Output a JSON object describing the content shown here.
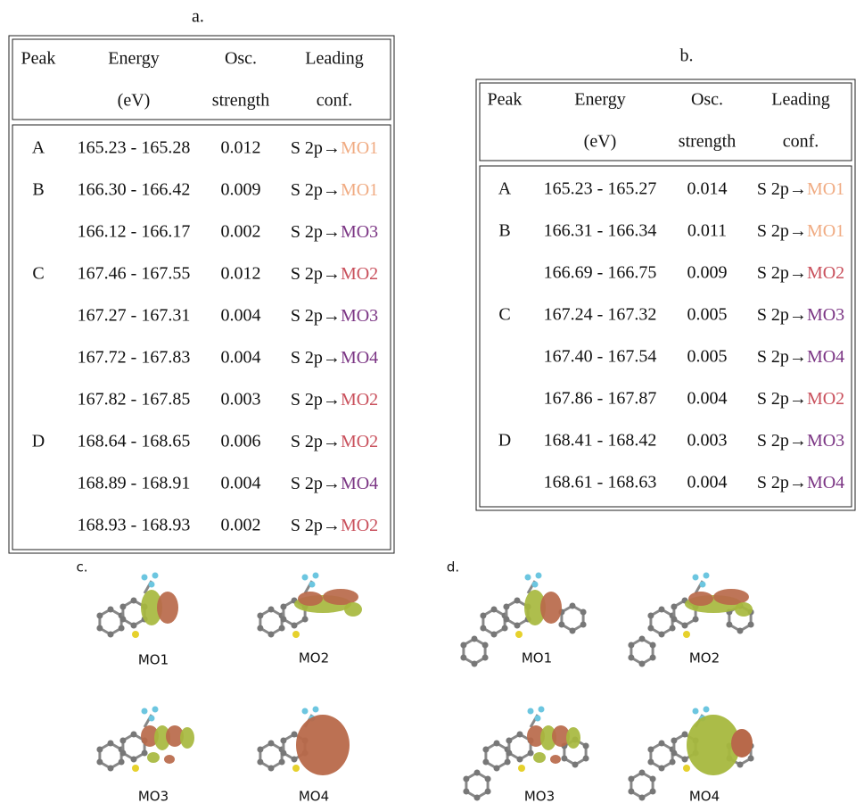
{
  "mo_colors": {
    "MO1": "#f0ab82",
    "MO2": "#c9505c",
    "MO3": "#7b3584",
    "MO4": "#7b3584"
  },
  "tables": [
    {
      "label": "a.",
      "headers": [
        {
          "line1": "Peak"
        },
        {
          "line1": "Energy",
          "line2": "(eV)"
        },
        {
          "line1": "Osc.",
          "line2": "strength"
        },
        {
          "line1": "Leading",
          "line2": "conf."
        }
      ],
      "rows": [
        {
          "peak": "A",
          "energy": "165.23 - 165.28",
          "osc": 0.012,
          "transition": "S 2p→",
          "mo": "MO1"
        },
        {
          "peak": "B",
          "energy": "166.30 - 166.42",
          "osc": 0.009,
          "transition": "S 2p→",
          "mo": "MO1"
        },
        {
          "energy": "166.12 - 166.17",
          "osc": 0.002,
          "transition": "S 2p→",
          "mo": "MO3"
        },
        {
          "peak": "C",
          "energy": "167.46 - 167.55",
          "osc": 0.012,
          "transition": "S 2p→",
          "mo": "MO2"
        },
        {
          "energy": "167.27 - 167.31",
          "osc": 0.004,
          "transition": "S 2p→",
          "mo": "MO3"
        },
        {
          "energy": "167.72 - 167.83",
          "osc": 0.004,
          "transition": "S 2p→",
          "mo": "MO4"
        },
        {
          "energy": "167.82 - 167.85",
          "osc": 0.003,
          "transition": "S 2p→",
          "mo": "MO2"
        },
        {
          "peak": "D",
          "energy": "168.64 - 168.65",
          "osc": 0.006,
          "transition": "S 2p→",
          "mo": "MO2"
        },
        {
          "energy": "168.89 - 168.91",
          "osc": 0.004,
          "transition": "S 2p→",
          "mo": "MO4"
        },
        {
          "energy": "168.93 - 168.93",
          "osc": 0.002,
          "transition": "S 2p→",
          "mo": "MO2"
        }
      ]
    },
    {
      "label": "b.",
      "headers": [
        {
          "line1": "Peak"
        },
        {
          "line1": "Energy",
          "line2": "(eV)"
        },
        {
          "line1": "Osc.",
          "line2": "strength"
        },
        {
          "line1": "Leading",
          "line2": "conf."
        }
      ],
      "rows": [
        {
          "peak": "A",
          "energy": "165.23 - 165.27",
          "osc": 0.014,
          "transition": "S 2p→",
          "mo": "MO1"
        },
        {
          "peak": "B",
          "energy": "166.31 - 166.34",
          "osc": 0.011,
          "transition": "S 2p→",
          "mo": "MO1"
        },
        {
          "energy": "166.69 - 166.75",
          "osc": 0.009,
          "transition": "S 2p→",
          "mo": "MO2"
        },
        {
          "peak": "C",
          "energy": "167.24 - 167.32",
          "osc": 0.005,
          "transition": "S 2p→",
          "mo": "MO3"
        },
        {
          "energy": "167.40 - 167.54",
          "osc": 0.005,
          "transition": "S 2p→",
          "mo": "MO4"
        },
        {
          "energy": "167.86 - 167.87",
          "osc": 0.004,
          "transition": "S 2p→",
          "mo": "MO2"
        },
        {
          "peak": "D",
          "energy": "168.41 - 168.42",
          "osc": 0.003,
          "transition": "S 2p→",
          "mo": "MO3"
        },
        {
          "energy": "168.61 - 168.63",
          "osc": 0.004,
          "transition": "S 2p→",
          "mo": "MO4"
        }
      ]
    }
  ],
  "figures": [
    {
      "label": "c.",
      "captions": [
        "MO1",
        "MO2",
        "MO3",
        "MO4"
      ]
    },
    {
      "label": "d.",
      "captions": [
        "MO1",
        "MO2",
        "MO3",
        "MO4"
      ]
    }
  ]
}
